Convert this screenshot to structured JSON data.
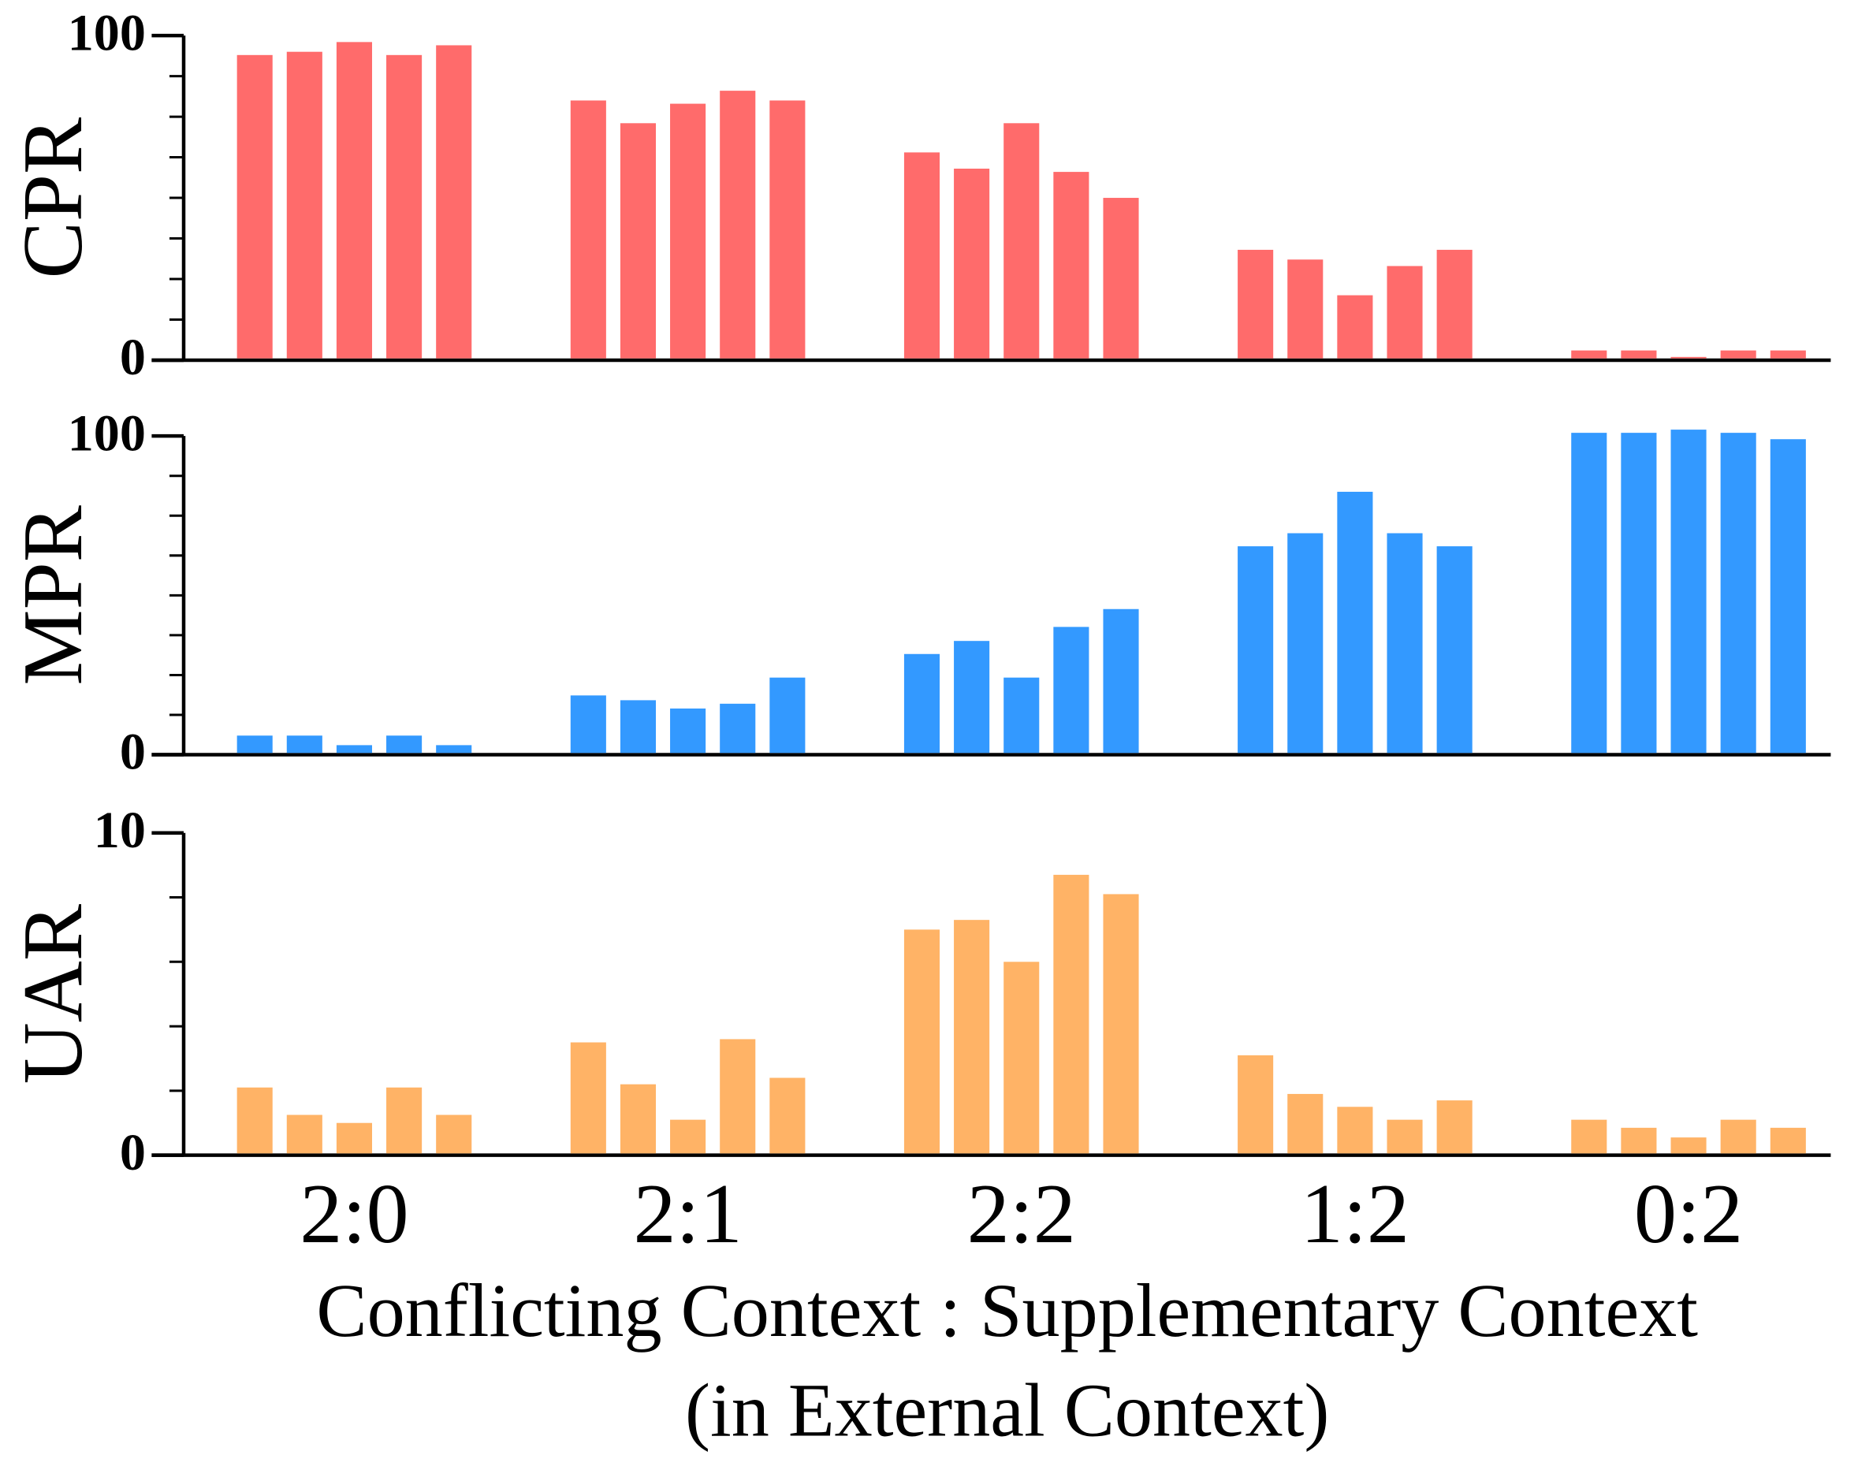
{
  "chart_data": [
    {
      "type": "bar",
      "y_label": "CPR",
      "color": "#ff6b6b",
      "ylim": [
        0,
        100
      ],
      "yticks": [
        0,
        100
      ],
      "minor_yticks": [
        12.5,
        25,
        37.5,
        50,
        62.5,
        75,
        87.5
      ],
      "series": [
        {
          "values": [
            94,
            80,
            64,
            34,
            3
          ]
        },
        {
          "values": [
            95,
            73,
            59,
            31,
            3
          ]
        },
        {
          "values": [
            98,
            79,
            73,
            20,
            1
          ]
        },
        {
          "values": [
            94,
            83,
            58,
            29,
            3
          ]
        },
        {
          "values": [
            97,
            80,
            50,
            34,
            3
          ]
        }
      ]
    },
    {
      "type": "bar",
      "y_label": "MPR",
      "color": "#3399ff",
      "ylim": [
        0,
        100
      ],
      "yticks": [
        0,
        100
      ],
      "minor_yticks": [
        12.5,
        25,
        37.5,
        50,
        62.5,
        75,
        87.5
      ],
      "series": [
        {
          "values": [
            6,
            18.6,
            31.6,
            65.4,
            101
          ]
        },
        {
          "values": [
            6,
            17.1,
            35.7,
            69.5,
            101
          ]
        },
        {
          "values": [
            3,
            14.5,
            24.2,
            82.5,
            102
          ]
        },
        {
          "values": [
            6,
            16,
            40.1,
            69.5,
            101
          ]
        },
        {
          "values": [
            3,
            24.2,
            45.7,
            65.4,
            99
          ]
        }
      ]
    },
    {
      "type": "bar",
      "y_label": "UAR",
      "color": "#ffb366",
      "ylim": [
        0,
        10
      ],
      "yticks": [
        0,
        10
      ],
      "minor_yticks": [
        2,
        4,
        6,
        8
      ],
      "categories": [
        "2:0",
        "2:1",
        "2:2",
        "1:2",
        "0:2"
      ],
      "x_label": [
        "Conflicting Context : Supplementary Context",
        "(in External Context)"
      ],
      "series": [
        {
          "values": [
            2.1,
            3.5,
            7.0,
            3.1,
            1.1
          ]
        },
        {
          "values": [
            1.25,
            2.2,
            7.3,
            1.9,
            0.85
          ]
        },
        {
          "values": [
            1.0,
            1.1,
            6.0,
            1.5,
            0.55
          ]
        },
        {
          "values": [
            2.1,
            3.6,
            8.7,
            1.1,
            1.1
          ]
        },
        {
          "values": [
            1.25,
            2.4,
            8.1,
            1.7,
            0.85
          ]
        }
      ]
    }
  ]
}
